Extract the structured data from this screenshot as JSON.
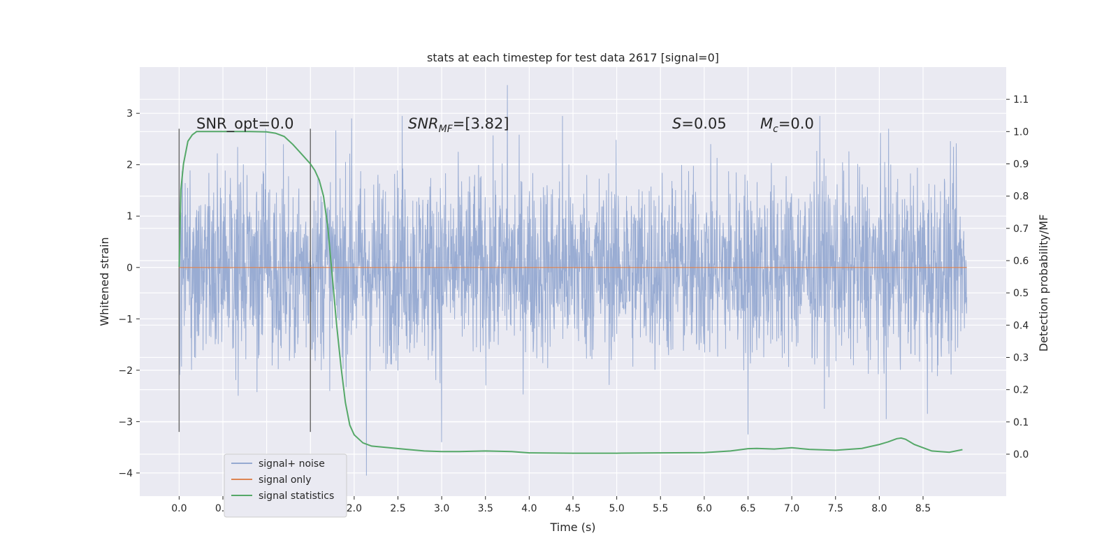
{
  "chart_data": {
    "type": "line",
    "title": "stats at each timestep for test data 2617 [signal=0]",
    "xlabel": "Time (s)",
    "ylabel_left": "Whitened strain",
    "ylabel_right": "Detection probability/MF",
    "xlim": [
      -0.45,
      9.45
    ],
    "ylim_left": [
      -4.45,
      3.9
    ],
    "ylim_right": [
      -0.13,
      1.2
    ],
    "x_ticks": [
      "0.0",
      "0.5",
      "1.0",
      "1.5",
      "2.0",
      "2.5",
      "3.0",
      "3.5",
      "4.0",
      "4.5",
      "5.0",
      "5.5",
      "6.0",
      "6.5",
      "7.0",
      "7.5",
      "8.0",
      "8.5"
    ],
    "y_ticks_left": [
      "3",
      "2",
      "1",
      "0",
      "−1",
      "−2",
      "−3",
      "−4"
    ],
    "y_ticks_right": [
      "1.1",
      "1.0",
      "0.9",
      "0.8",
      "0.7",
      "0.6",
      "0.5",
      "0.4",
      "0.3",
      "0.2",
      "0.1",
      "0.0"
    ],
    "grid": true,
    "legend_position": "lower-left",
    "annotations": {
      "snr_opt": "SNR_opt=0.0",
      "snr_mf_main": "SNR",
      "snr_mf_sub": "MF",
      "snr_mf_value": "=[3.82]",
      "s_main": "S",
      "s_value": "=0.05",
      "mc_main": "M",
      "mc_sub": "c",
      "mc_value": "=0.0"
    },
    "vertical_markers": [
      {
        "x": 0.0,
        "ymin": -3.2,
        "ymax": 2.7
      },
      {
        "x": 1.5,
        "ymin": -3.2,
        "ymax": 2.7
      }
    ],
    "series": [
      {
        "name": "signal+ noise",
        "color": "#95a9d1",
        "axis": "left",
        "x_range": [
          0.0,
          9.0
        ],
        "typical_band": [
          -1.4,
          1.4
        ],
        "notable_peaks": [
          [
            0.99,
            2.7
          ],
          [
            1.97,
            2.9
          ],
          [
            2.14,
            -4.05
          ],
          [
            2.55,
            2.95
          ],
          [
            3.0,
            -3.4
          ],
          [
            3.75,
            3.55
          ],
          [
            4.38,
            2.95
          ],
          [
            6.5,
            -3.25
          ],
          [
            7.32,
            2.95
          ],
          [
            8.08,
            -2.95
          ],
          [
            8.55,
            -2.85
          ]
        ]
      },
      {
        "name": "signal only",
        "color": "#dd8452",
        "axis": "left",
        "x": [
          0.0,
          9.0
        ],
        "y": [
          0.0,
          0.0
        ]
      },
      {
        "name": "signal statistics",
        "color": "#55a868",
        "axis": "right",
        "x": [
          0.0,
          0.02,
          0.05,
          0.1,
          0.15,
          0.2,
          0.3,
          0.5,
          0.8,
          1.0,
          1.1,
          1.2,
          1.3,
          1.4,
          1.5,
          1.55,
          1.6,
          1.65,
          1.7,
          1.75,
          1.8,
          1.85,
          1.9,
          1.95,
          2.0,
          2.1,
          2.2,
          2.4,
          2.6,
          2.8,
          3.0,
          3.2,
          3.5,
          3.8,
          4.0,
          4.5,
          5.0,
          5.5,
          6.0,
          6.3,
          6.5,
          6.6,
          6.8,
          7.0,
          7.2,
          7.5,
          7.8,
          8.0,
          8.1,
          8.2,
          8.25,
          8.3,
          8.4,
          8.6,
          8.8,
          8.95
        ],
        "y": [
          0.58,
          0.82,
          0.9,
          0.97,
          0.99,
          1.0,
          1.0,
          1.0,
          1.0,
          0.999,
          0.995,
          0.985,
          0.96,
          0.93,
          0.9,
          0.88,
          0.85,
          0.8,
          0.7,
          0.55,
          0.4,
          0.27,
          0.16,
          0.09,
          0.06,
          0.035,
          0.025,
          0.02,
          0.015,
          0.01,
          0.008,
          0.008,
          0.01,
          0.008,
          0.004,
          0.003,
          0.003,
          0.004,
          0.005,
          0.01,
          0.017,
          0.018,
          0.016,
          0.02,
          0.015,
          0.012,
          0.018,
          0.03,
          0.038,
          0.048,
          0.05,
          0.046,
          0.03,
          0.01,
          0.006,
          0.014
        ]
      }
    ]
  }
}
